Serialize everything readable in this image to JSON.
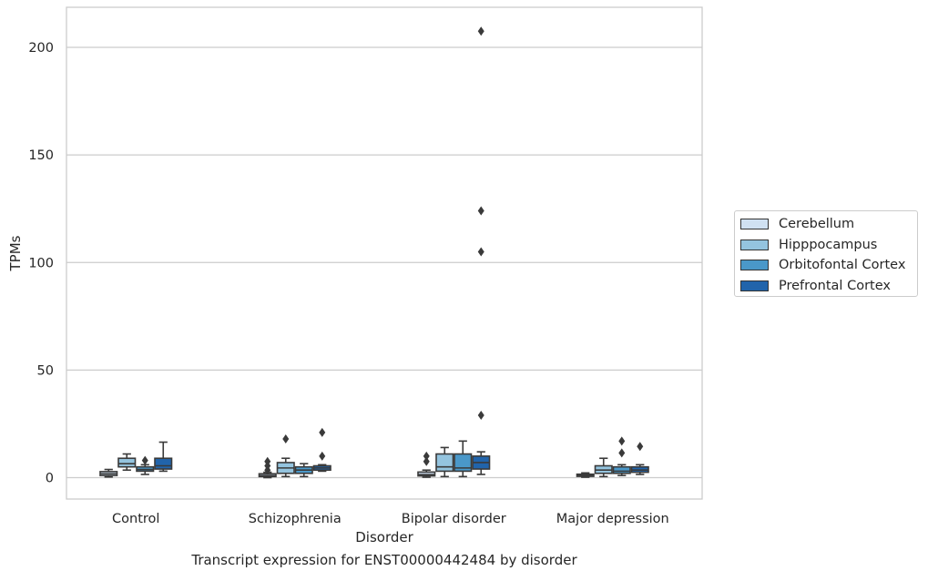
{
  "caption": "Transcript expression for ENST00000442484 by disorder",
  "chart_data": {
    "type": "box",
    "xlabel": "Disorder",
    "ylabel": "TPMs",
    "ylim": [
      -10,
      218
    ],
    "yticks": [
      0,
      50,
      100,
      150,
      200
    ],
    "grid": "horizontal",
    "legend_position": "center-right, outside plot",
    "categories": [
      "Control",
      "Schizophrenia",
      "Bipolar disorder",
      "Major depression"
    ],
    "series": [
      {
        "name": "Cerebellum",
        "color": "#d0e1f2",
        "boxes": [
          {
            "whisker_low": 0.3,
            "q1": 1.0,
            "median": 1.8,
            "q3": 2.8,
            "whisker_high": 3.8,
            "outliers": []
          },
          {
            "whisker_low": 0.0,
            "q1": 0.5,
            "median": 1.0,
            "q3": 1.8,
            "whisker_high": 2.5,
            "outliers": [
              3.5,
              5.5,
              7.5
            ]
          },
          {
            "whisker_low": 0.2,
            "q1": 0.8,
            "median": 1.4,
            "q3": 2.6,
            "whisker_high": 3.5,
            "outliers": [
              7.5,
              10.0
            ]
          },
          {
            "whisker_low": 0.2,
            "q1": 0.6,
            "median": 1.0,
            "q3": 1.6,
            "whisker_high": 2.2,
            "outliers": []
          }
        ]
      },
      {
        "name": "Hipppocampus",
        "color": "#94c4df",
        "boxes": [
          {
            "whisker_low": 3.5,
            "q1": 5.0,
            "median": 6.5,
            "q3": 9.0,
            "whisker_high": 11.0,
            "outliers": []
          },
          {
            "whisker_low": 0.5,
            "q1": 2.0,
            "median": 4.5,
            "q3": 7.0,
            "whisker_high": 9.0,
            "outliers": [
              18.0
            ]
          },
          {
            "whisker_low": 0.5,
            "q1": 3.0,
            "median": 5.0,
            "q3": 11.0,
            "whisker_high": 14.0,
            "outliers": []
          },
          {
            "whisker_low": 0.5,
            "q1": 2.0,
            "median": 3.5,
            "q3": 5.5,
            "whisker_high": 9.0,
            "outliers": []
          }
        ]
      },
      {
        "name": "Orbitofontal Cortex",
        "color": "#4a98c9",
        "boxes": [
          {
            "whisker_low": 1.5,
            "q1": 3.0,
            "median": 3.8,
            "q3": 5.0,
            "whisker_high": 6.0,
            "outliers": [
              8.0
            ]
          },
          {
            "whisker_low": 0.5,
            "q1": 2.0,
            "median": 3.5,
            "q3": 5.0,
            "whisker_high": 6.5,
            "outliers": []
          },
          {
            "whisker_low": 0.5,
            "q1": 3.0,
            "median": 4.5,
            "q3": 11.0,
            "whisker_high": 17.0,
            "outliers": []
          },
          {
            "whisker_low": 1.0,
            "q1": 2.0,
            "median": 3.0,
            "q3": 5.0,
            "whisker_high": 6.0,
            "outliers": [
              11.5,
              17.0
            ]
          }
        ]
      },
      {
        "name": "Prefrontal Cortex",
        "color": "#2164ab",
        "boxes": [
          {
            "whisker_low": 3.0,
            "q1": 4.0,
            "median": 5.5,
            "q3": 9.0,
            "whisker_high": 16.5,
            "outliers": []
          },
          {
            "whisker_low": 3.0,
            "q1": 3.5,
            "median": 4.5,
            "q3": 5.5,
            "whisker_high": 6.0,
            "outliers": [
              10.0,
              21.0
            ]
          },
          {
            "whisker_low": 1.5,
            "q1": 4.0,
            "median": 7.0,
            "q3": 10.0,
            "whisker_high": 12.0,
            "outliers": [
              29.0,
              105.0,
              124.0,
              207.5
            ]
          },
          {
            "whisker_low": 1.5,
            "q1": 2.5,
            "median": 3.5,
            "q3": 5.0,
            "whisker_high": 6.0,
            "outliers": [
              14.5
            ]
          }
        ]
      }
    ]
  }
}
